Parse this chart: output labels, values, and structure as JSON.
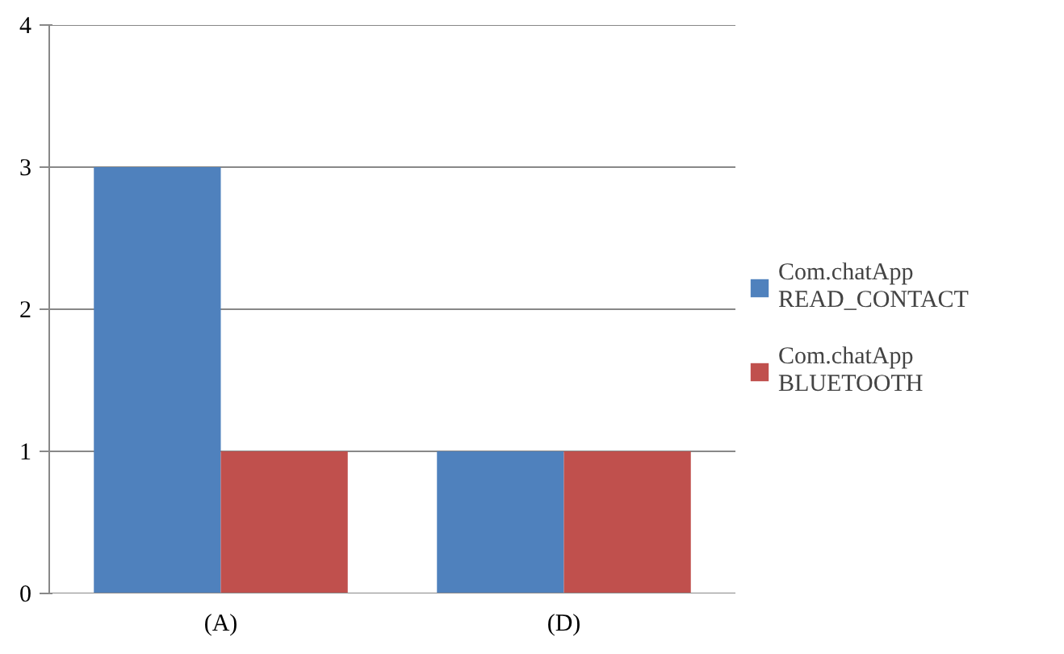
{
  "chart_data": {
    "type": "bar",
    "categories": [
      "(A)",
      "(D)"
    ],
    "series": [
      {
        "name": "Com.chatApp READ_CONTACT",
        "color": "#4f81bd",
        "values": [
          3,
          1
        ]
      },
      {
        "name": "Com.chatApp BLUETOOTH",
        "color": "#c0504d",
        "values": [
          1,
          1
        ]
      }
    ],
    "ylim": [
      0,
      4
    ],
    "yticks": [
      0,
      1,
      2,
      3,
      4
    ],
    "grid": "y",
    "legend": "right"
  }
}
